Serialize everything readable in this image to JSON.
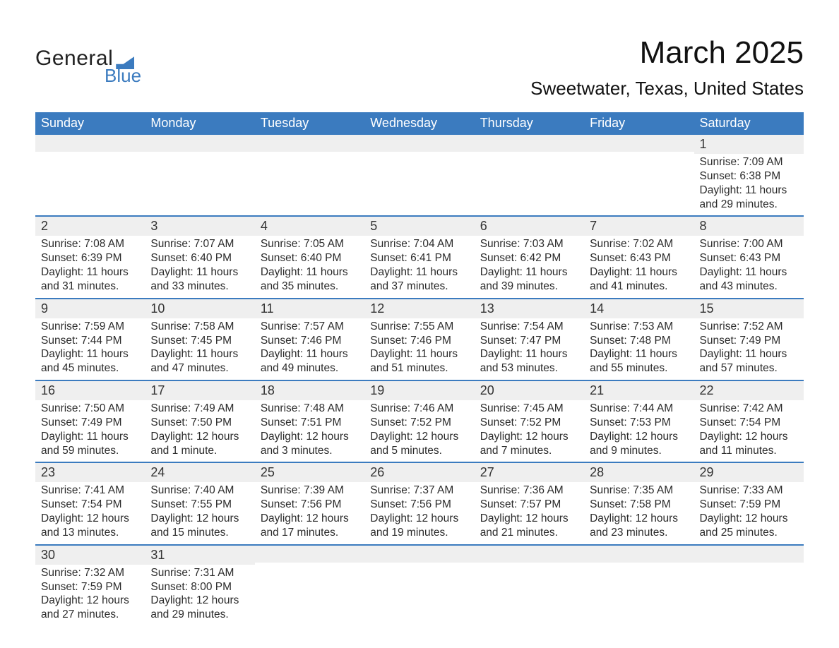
{
  "brand": {
    "line1": "General",
    "line2": "Blue"
  },
  "title": {
    "month": "March 2025",
    "location": "Sweetwater, Texas, United States"
  },
  "colors": {
    "header_blue": "#3b7bbf",
    "band_gray": "#efefef",
    "text": "#2b2b2b",
    "white": "#ffffff"
  },
  "calendar": {
    "weekday_labels": [
      "Sunday",
      "Monday",
      "Tuesday",
      "Wednesday",
      "Thursday",
      "Friday",
      "Saturday"
    ],
    "weeks": [
      [
        {
          "blank": true
        },
        {
          "blank": true
        },
        {
          "blank": true
        },
        {
          "blank": true
        },
        {
          "blank": true
        },
        {
          "blank": true
        },
        {
          "day": "1",
          "sunrise": "Sunrise: 7:09 AM",
          "sunset": "Sunset: 6:38 PM",
          "daylight1": "Daylight: 11 hours",
          "daylight2": "and 29 minutes."
        }
      ],
      [
        {
          "day": "2",
          "sunrise": "Sunrise: 7:08 AM",
          "sunset": "Sunset: 6:39 PM",
          "daylight1": "Daylight: 11 hours",
          "daylight2": "and 31 minutes."
        },
        {
          "day": "3",
          "sunrise": "Sunrise: 7:07 AM",
          "sunset": "Sunset: 6:40 PM",
          "daylight1": "Daylight: 11 hours",
          "daylight2": "and 33 minutes."
        },
        {
          "day": "4",
          "sunrise": "Sunrise: 7:05 AM",
          "sunset": "Sunset: 6:40 PM",
          "daylight1": "Daylight: 11 hours",
          "daylight2": "and 35 minutes."
        },
        {
          "day": "5",
          "sunrise": "Sunrise: 7:04 AM",
          "sunset": "Sunset: 6:41 PM",
          "daylight1": "Daylight: 11 hours",
          "daylight2": "and 37 minutes."
        },
        {
          "day": "6",
          "sunrise": "Sunrise: 7:03 AM",
          "sunset": "Sunset: 6:42 PM",
          "daylight1": "Daylight: 11 hours",
          "daylight2": "and 39 minutes."
        },
        {
          "day": "7",
          "sunrise": "Sunrise: 7:02 AM",
          "sunset": "Sunset: 6:43 PM",
          "daylight1": "Daylight: 11 hours",
          "daylight2": "and 41 minutes."
        },
        {
          "day": "8",
          "sunrise": "Sunrise: 7:00 AM",
          "sunset": "Sunset: 6:43 PM",
          "daylight1": "Daylight: 11 hours",
          "daylight2": "and 43 minutes."
        }
      ],
      [
        {
          "day": "9",
          "sunrise": "Sunrise: 7:59 AM",
          "sunset": "Sunset: 7:44 PM",
          "daylight1": "Daylight: 11 hours",
          "daylight2": "and 45 minutes."
        },
        {
          "day": "10",
          "sunrise": "Sunrise: 7:58 AM",
          "sunset": "Sunset: 7:45 PM",
          "daylight1": "Daylight: 11 hours",
          "daylight2": "and 47 minutes."
        },
        {
          "day": "11",
          "sunrise": "Sunrise: 7:57 AM",
          "sunset": "Sunset: 7:46 PM",
          "daylight1": "Daylight: 11 hours",
          "daylight2": "and 49 minutes."
        },
        {
          "day": "12",
          "sunrise": "Sunrise: 7:55 AM",
          "sunset": "Sunset: 7:46 PM",
          "daylight1": "Daylight: 11 hours",
          "daylight2": "and 51 minutes."
        },
        {
          "day": "13",
          "sunrise": "Sunrise: 7:54 AM",
          "sunset": "Sunset: 7:47 PM",
          "daylight1": "Daylight: 11 hours",
          "daylight2": "and 53 minutes."
        },
        {
          "day": "14",
          "sunrise": "Sunrise: 7:53 AM",
          "sunset": "Sunset: 7:48 PM",
          "daylight1": "Daylight: 11 hours",
          "daylight2": "and 55 minutes."
        },
        {
          "day": "15",
          "sunrise": "Sunrise: 7:52 AM",
          "sunset": "Sunset: 7:49 PM",
          "daylight1": "Daylight: 11 hours",
          "daylight2": "and 57 minutes."
        }
      ],
      [
        {
          "day": "16",
          "sunrise": "Sunrise: 7:50 AM",
          "sunset": "Sunset: 7:49 PM",
          "daylight1": "Daylight: 11 hours",
          "daylight2": "and 59 minutes."
        },
        {
          "day": "17",
          "sunrise": "Sunrise: 7:49 AM",
          "sunset": "Sunset: 7:50 PM",
          "daylight1": "Daylight: 12 hours",
          "daylight2": "and 1 minute."
        },
        {
          "day": "18",
          "sunrise": "Sunrise: 7:48 AM",
          "sunset": "Sunset: 7:51 PM",
          "daylight1": "Daylight: 12 hours",
          "daylight2": "and 3 minutes."
        },
        {
          "day": "19",
          "sunrise": "Sunrise: 7:46 AM",
          "sunset": "Sunset: 7:52 PM",
          "daylight1": "Daylight: 12 hours",
          "daylight2": "and 5 minutes."
        },
        {
          "day": "20",
          "sunrise": "Sunrise: 7:45 AM",
          "sunset": "Sunset: 7:52 PM",
          "daylight1": "Daylight: 12 hours",
          "daylight2": "and 7 minutes."
        },
        {
          "day": "21",
          "sunrise": "Sunrise: 7:44 AM",
          "sunset": "Sunset: 7:53 PM",
          "daylight1": "Daylight: 12 hours",
          "daylight2": "and 9 minutes."
        },
        {
          "day": "22",
          "sunrise": "Sunrise: 7:42 AM",
          "sunset": "Sunset: 7:54 PM",
          "daylight1": "Daylight: 12 hours",
          "daylight2": "and 11 minutes."
        }
      ],
      [
        {
          "day": "23",
          "sunrise": "Sunrise: 7:41 AM",
          "sunset": "Sunset: 7:54 PM",
          "daylight1": "Daylight: 12 hours",
          "daylight2": "and 13 minutes."
        },
        {
          "day": "24",
          "sunrise": "Sunrise: 7:40 AM",
          "sunset": "Sunset: 7:55 PM",
          "daylight1": "Daylight: 12 hours",
          "daylight2": "and 15 minutes."
        },
        {
          "day": "25",
          "sunrise": "Sunrise: 7:39 AM",
          "sunset": "Sunset: 7:56 PM",
          "daylight1": "Daylight: 12 hours",
          "daylight2": "and 17 minutes."
        },
        {
          "day": "26",
          "sunrise": "Sunrise: 7:37 AM",
          "sunset": "Sunset: 7:56 PM",
          "daylight1": "Daylight: 12 hours",
          "daylight2": "and 19 minutes."
        },
        {
          "day": "27",
          "sunrise": "Sunrise: 7:36 AM",
          "sunset": "Sunset: 7:57 PM",
          "daylight1": "Daylight: 12 hours",
          "daylight2": "and 21 minutes."
        },
        {
          "day": "28",
          "sunrise": "Sunrise: 7:35 AM",
          "sunset": "Sunset: 7:58 PM",
          "daylight1": "Daylight: 12 hours",
          "daylight2": "and 23 minutes."
        },
        {
          "day": "29",
          "sunrise": "Sunrise: 7:33 AM",
          "sunset": "Sunset: 7:59 PM",
          "daylight1": "Daylight: 12 hours",
          "daylight2": "and 25 minutes."
        }
      ],
      [
        {
          "day": "30",
          "sunrise": "Sunrise: 7:32 AM",
          "sunset": "Sunset: 7:59 PM",
          "daylight1": "Daylight: 12 hours",
          "daylight2": "and 27 minutes."
        },
        {
          "day": "31",
          "sunrise": "Sunrise: 7:31 AM",
          "sunset": "Sunset: 8:00 PM",
          "daylight1": "Daylight: 12 hours",
          "daylight2": "and 29 minutes."
        },
        {
          "blank": true
        },
        {
          "blank": true
        },
        {
          "blank": true
        },
        {
          "blank": true
        },
        {
          "blank": true
        }
      ]
    ]
  }
}
